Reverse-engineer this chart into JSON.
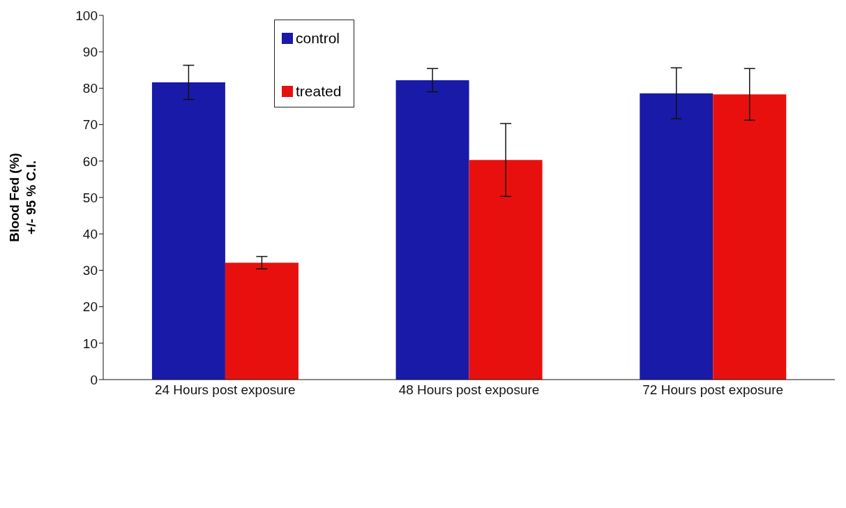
{
  "chart_data": {
    "type": "bar",
    "ylabel": "Blood Fed (%)\n+/- 95 % C.I.",
    "categories": [
      "24 Hours post exposure",
      "48 Hours post exposure",
      "72 Hours post exposure"
    ],
    "series": [
      {
        "name": "control",
        "color": "#1a1aa8",
        "values": [
          81.6,
          82.2,
          78.6
        ],
        "errors": [
          4.7,
          3.2,
          7
        ]
      },
      {
        "name": "treated",
        "color": "#e8100e",
        "values": [
          32.1,
          60.3,
          78.3
        ],
        "errors": [
          1.7,
          10,
          7.1
        ]
      }
    ],
    "ylim": [
      0,
      100
    ],
    "yticks": [
      0,
      10,
      20,
      30,
      40,
      50,
      60,
      70,
      80,
      90,
      100
    ],
    "grid": false,
    "legend": "top left"
  }
}
